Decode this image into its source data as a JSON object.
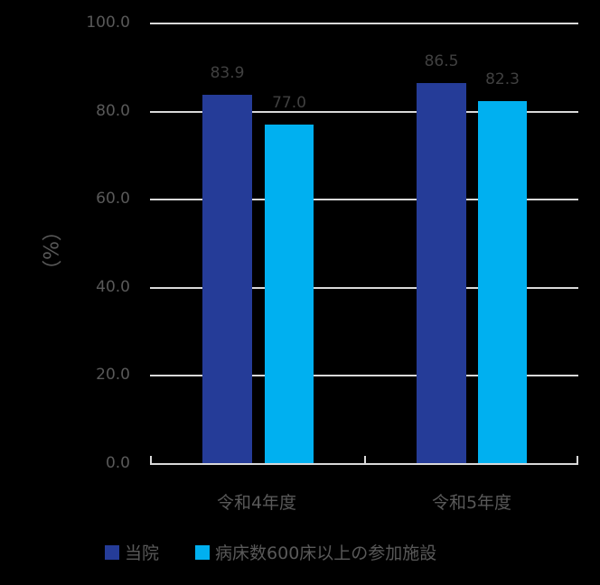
{
  "chart_data": {
    "type": "bar",
    "title": "",
    "xlabel": "",
    "ylabel": "（%）",
    "ylim": [
      0,
      100
    ],
    "yticks": [
      "0.0",
      "20.0",
      "40.0",
      "60.0",
      "80.0",
      "100.0"
    ],
    "grid": true,
    "legend_position": "bottom",
    "categories": [
      "令和4年度",
      "令和5年度"
    ],
    "series": [
      {
        "name": "当院",
        "color": "#253C98",
        "values": [
          83.9,
          86.5
        ],
        "labels": [
          "83.9",
          "86.5"
        ]
      },
      {
        "name": "病床数600床以上の参加施設",
        "color": "#00B0F0",
        "values": [
          77.0,
          82.3
        ],
        "labels": [
          "77.0",
          "82.3"
        ]
      }
    ]
  }
}
